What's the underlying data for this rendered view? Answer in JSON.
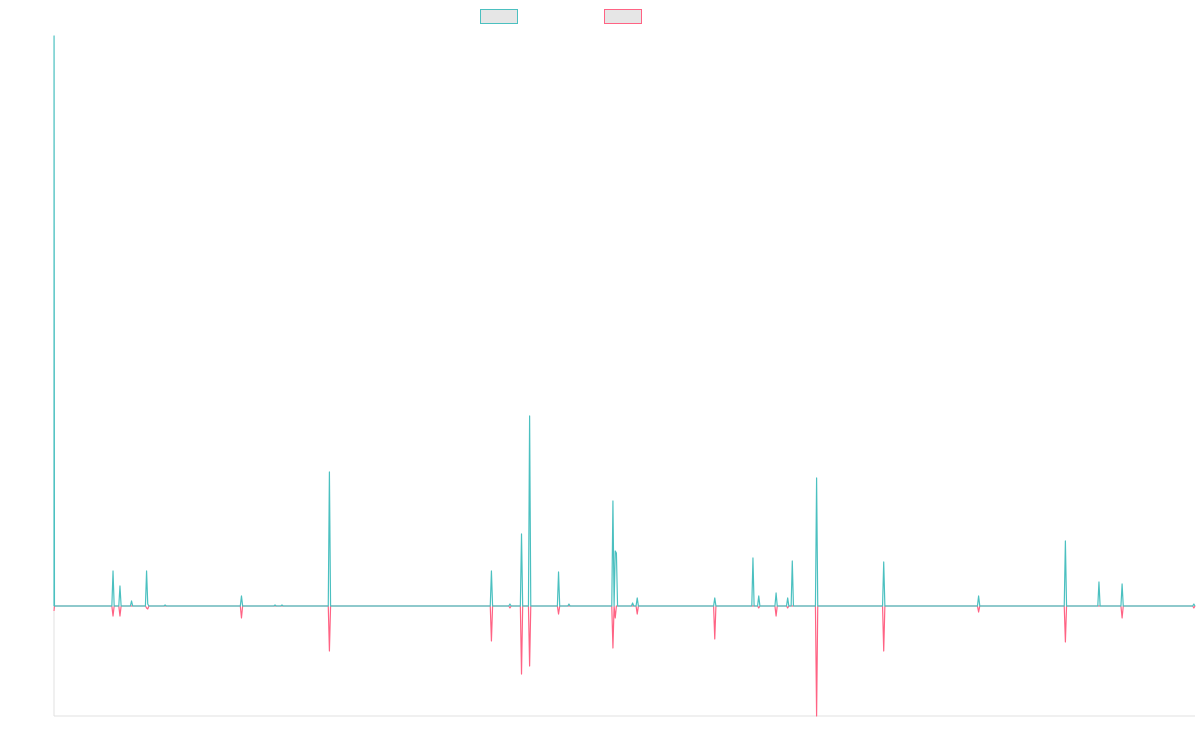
{
  "chart_data": {
    "type": "line",
    "title": "",
    "xlabel": "",
    "ylabel": "",
    "ylim": [
      -110,
      570
    ],
    "grid": false,
    "legend_position": "top",
    "series": [
      {
        "color": "#4bc0c0",
        "points": [
          [
            0,
            0
          ],
          [
            0.05,
            570
          ],
          [
            0.4,
            0
          ],
          [
            50,
            0
          ],
          [
            51,
            35
          ],
          [
            52,
            0
          ],
          [
            56,
            0
          ],
          [
            57,
            20
          ],
          [
            58,
            0
          ],
          [
            66,
            0
          ],
          [
            67,
            5
          ],
          [
            68,
            0
          ],
          [
            79,
            0
          ],
          [
            80,
            35
          ],
          [
            81,
            2
          ],
          [
            82,
            0
          ],
          [
            95,
            0
          ],
          [
            96,
            1
          ],
          [
            97,
            0
          ],
          [
            161,
            0
          ],
          [
            162,
            10
          ],
          [
            163,
            0
          ],
          [
            190,
            0
          ],
          [
            191,
            1
          ],
          [
            192,
            0
          ],
          [
            196,
            0
          ],
          [
            197,
            1
          ],
          [
            198,
            0
          ],
          [
            237,
            0
          ],
          [
            238,
            134
          ],
          [
            239,
            0
          ],
          [
            377,
            0
          ],
          [
            378,
            35
          ],
          [
            379,
            0
          ],
          [
            393,
            0
          ],
          [
            394,
            2
          ],
          [
            395,
            0
          ],
          [
            403,
            0
          ],
          [
            404,
            72
          ],
          [
            405,
            0
          ],
          [
            410,
            0
          ],
          [
            411,
            190
          ],
          [
            412,
            0
          ],
          [
            435,
            0
          ],
          [
            436,
            34
          ],
          [
            437,
            0
          ],
          [
            444,
            0
          ],
          [
            445,
            2
          ],
          [
            446,
            0
          ],
          [
            482,
            0
          ],
          [
            483,
            105
          ],
          [
            484,
            0
          ],
          [
            485,
            55
          ],
          [
            486,
            53
          ],
          [
            487,
            0
          ],
          [
            499,
            0
          ],
          [
            500,
            3
          ],
          [
            501,
            0
          ],
          [
            503,
            0
          ],
          [
            504,
            8
          ],
          [
            505,
            0
          ],
          [
            570,
            0
          ],
          [
            571,
            8
          ],
          [
            572,
            0
          ],
          [
            603,
            0
          ],
          [
            604,
            48
          ],
          [
            605,
            0
          ],
          [
            608,
            0
          ],
          [
            609,
            10
          ],
          [
            610,
            0
          ],
          [
            623,
            0
          ],
          [
            624,
            13
          ],
          [
            625,
            0
          ],
          [
            633,
            0
          ],
          [
            634,
            8
          ],
          [
            635,
            0
          ],
          [
            637,
            0
          ],
          [
            638,
            45
          ],
          [
            639,
            0
          ],
          [
            658,
            0
          ],
          [
            659,
            128
          ],
          [
            660,
            0
          ],
          [
            716,
            0
          ],
          [
            717,
            44
          ],
          [
            718,
            0
          ],
          [
            798,
            0
          ],
          [
            799,
            10
          ],
          [
            800,
            0
          ],
          [
            873,
            0
          ],
          [
            874,
            65
          ],
          [
            875,
            0
          ],
          [
            902,
            0
          ],
          [
            903,
            24
          ],
          [
            904,
            0
          ],
          [
            922,
            0
          ],
          [
            923,
            22
          ],
          [
            924,
            0
          ],
          [
            984,
            0
          ],
          [
            985,
            2
          ],
          [
            986,
            0
          ]
        ]
      },
      {
        "color": "#ff6384",
        "points": [
          [
            0,
            -5
          ],
          [
            0.4,
            0
          ],
          [
            50,
            0
          ],
          [
            51,
            -10
          ],
          [
            52,
            0
          ],
          [
            56,
            0
          ],
          [
            57,
            -10
          ],
          [
            58,
            0
          ],
          [
            79,
            0
          ],
          [
            80,
            -2
          ],
          [
            81,
            -3
          ],
          [
            82,
            0
          ],
          [
            161,
            0
          ],
          [
            162,
            -12
          ],
          [
            163,
            0
          ],
          [
            237,
            0
          ],
          [
            238,
            -45
          ],
          [
            239,
            0
          ],
          [
            377,
            0
          ],
          [
            378,
            -35
          ],
          [
            379,
            0
          ],
          [
            393,
            0
          ],
          [
            394,
            -2
          ],
          [
            395,
            0
          ],
          [
            403,
            0
          ],
          [
            404,
            -68
          ],
          [
            405,
            0
          ],
          [
            410,
            0
          ],
          [
            411,
            -60
          ],
          [
            412,
            0
          ],
          [
            435,
            0
          ],
          [
            436,
            -8
          ],
          [
            437,
            0
          ],
          [
            482,
            0
          ],
          [
            483,
            -42
          ],
          [
            484,
            0
          ],
          [
            485,
            -12
          ],
          [
            486,
            0
          ],
          [
            503,
            0
          ],
          [
            504,
            -8
          ],
          [
            505,
            0
          ],
          [
            570,
            0
          ],
          [
            571,
            -33
          ],
          [
            572,
            0
          ],
          [
            608,
            0
          ],
          [
            609,
            -2
          ],
          [
            610,
            0
          ],
          [
            623,
            0
          ],
          [
            624,
            -10
          ],
          [
            625,
            0
          ],
          [
            633,
            0
          ],
          [
            634,
            -2
          ],
          [
            635,
            0
          ],
          [
            658,
            0
          ],
          [
            659,
            -110
          ],
          [
            660,
            0
          ],
          [
            716,
            0
          ],
          [
            717,
            -45
          ],
          [
            718,
            0
          ],
          [
            798,
            0
          ],
          [
            799,
            -6
          ],
          [
            800,
            0
          ],
          [
            873,
            0
          ],
          [
            874,
            -36
          ],
          [
            875,
            0
          ],
          [
            922,
            0
          ],
          [
            923,
            -12
          ],
          [
            924,
            0
          ],
          [
            984,
            0
          ],
          [
            985,
            -2
          ],
          [
            986,
            0
          ]
        ]
      }
    ],
    "xlim": [
      0,
      986
    ]
  }
}
